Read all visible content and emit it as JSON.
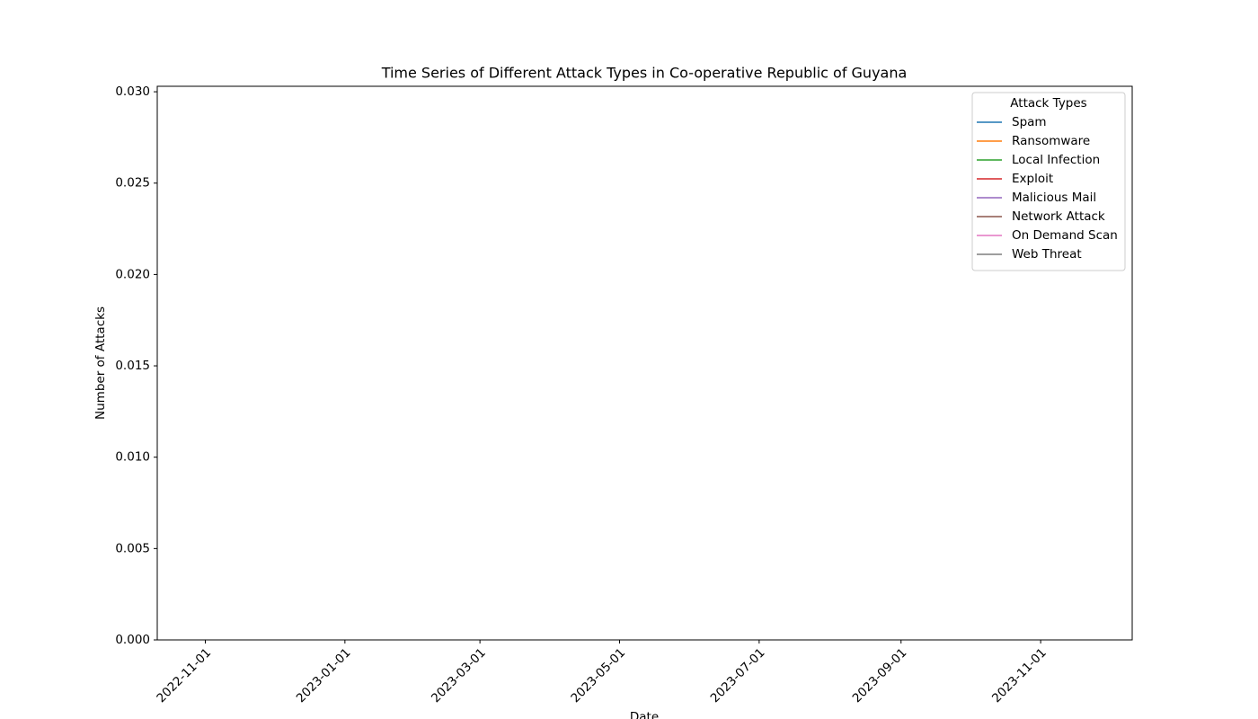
{
  "chart_data": {
    "type": "line",
    "title": "Time Series of Different Attack Types in Co-operative Republic of Guyana",
    "xlabel": "Date",
    "ylabel": "Number of Attacks",
    "legend_title": "Attack Types",
    "legend": "upper right",
    "x": [],
    "series": [
      {
        "name": "Spam",
        "color": "#1f77b4",
        "values": []
      },
      {
        "name": "Ransomware",
        "color": "#ff7f0e",
        "values": []
      },
      {
        "name": "Local Infection",
        "color": "#2ca02c",
        "values": []
      },
      {
        "name": "Exploit",
        "color": "#d62728",
        "values": []
      },
      {
        "name": "Malicious Mail",
        "color": "#9467bd",
        "values": []
      },
      {
        "name": "Network Attack",
        "color": "#8c564b",
        "values": []
      },
      {
        "name": "On Demand Scan",
        "color": "#e377c2",
        "values": []
      },
      {
        "name": "Web Threat",
        "color": "#7f7f7f",
        "values": []
      }
    ],
    "xlim": [
      "2022-10-11",
      "2023-12-11"
    ],
    "xticks": [
      "2022-11-01",
      "2023-01-01",
      "2023-03-01",
      "2023-05-01",
      "2023-07-01",
      "2023-09-01",
      "2023-11-01"
    ],
    "ylim": [
      0,
      0.0303
    ],
    "yticks": [
      {
        "value": 0,
        "label": "0.000"
      },
      {
        "value": 0.005,
        "label": "0.005"
      },
      {
        "value": 0.01,
        "label": "0.010"
      },
      {
        "value": 0.015,
        "label": "0.015"
      },
      {
        "value": 0.02,
        "label": "0.020"
      },
      {
        "value": 0.025,
        "label": "0.025"
      },
      {
        "value": 0.03,
        "label": "0.030"
      }
    ],
    "grid": false
  }
}
